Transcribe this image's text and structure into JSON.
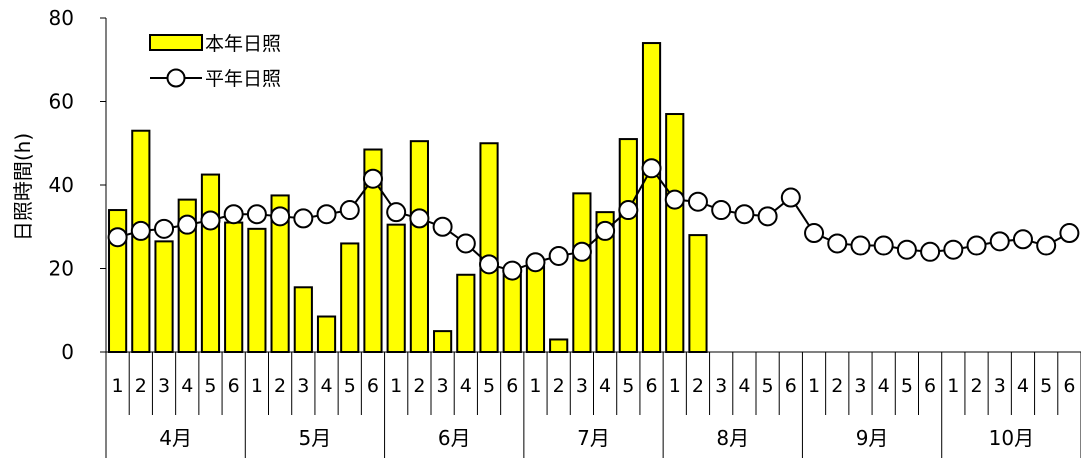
{
  "chart_data": {
    "type": "bar",
    "ylabel": "日照時間(h)",
    "ylim": [
      0,
      80
    ],
    "yticks": [
      0,
      20,
      40,
      60,
      80
    ],
    "grid": false,
    "legend_position": "top-left",
    "months": [
      "4月",
      "5月",
      "6月",
      "7月",
      "8月",
      "9月",
      "10月"
    ],
    "periods": [
      "1",
      "2",
      "3",
      "4",
      "5",
      "6"
    ],
    "categories": [
      "4月-1",
      "4月-2",
      "4月-3",
      "4月-4",
      "4月-5",
      "4月-6",
      "5月-1",
      "5月-2",
      "5月-3",
      "5月-4",
      "5月-5",
      "5月-6",
      "6月-1",
      "6月-2",
      "6月-3",
      "6月-4",
      "6月-5",
      "6月-6",
      "7月-1",
      "7月-2",
      "7月-3",
      "7月-4",
      "7月-5",
      "7月-6",
      "8月-1",
      "8月-2",
      "8月-3",
      "8月-4",
      "8月-5",
      "8月-6",
      "9月-1",
      "9月-2",
      "9月-3",
      "9月-4",
      "9月-5",
      "9月-6",
      "10月-1",
      "10月-2",
      "10月-3",
      "10月-4",
      "10月-5",
      "10月-6"
    ],
    "series": [
      {
        "name": "本年日照",
        "kind": "bar",
        "color": "#ffff00",
        "values": [
          34,
          53,
          26.5,
          36.5,
          42.5,
          31,
          29.5,
          37.5,
          15.5,
          8.5,
          26,
          48.5,
          30.5,
          50.5,
          5,
          18.5,
          50,
          18.5,
          20.5,
          3,
          38,
          33.5,
          51,
          74,
          57,
          28,
          null,
          null,
          null,
          null,
          null,
          null,
          null,
          null,
          null,
          null,
          null,
          null,
          null,
          null,
          null,
          null
        ]
      },
      {
        "name": "平年日照",
        "kind": "line",
        "color": "#ffffff",
        "values": [
          27.5,
          29,
          29.5,
          30.5,
          31.5,
          33,
          33,
          32.5,
          32,
          33,
          34,
          41.5,
          33.5,
          32,
          30,
          26,
          21,
          19.5,
          21.5,
          23,
          24,
          29,
          34,
          44,
          36.5,
          36,
          34,
          33,
          32.5,
          37,
          28.5,
          26,
          25.5,
          25.5,
          24.5,
          24,
          24.5,
          25.5,
          26.5,
          27,
          25.5,
          28.5
        ]
      }
    ]
  }
}
